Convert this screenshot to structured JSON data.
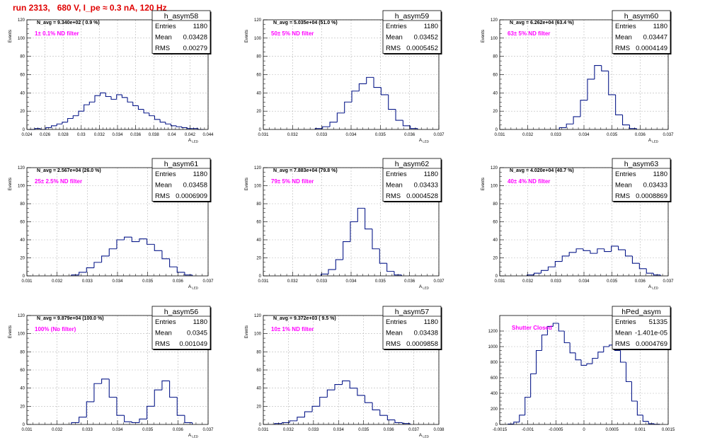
{
  "page": {
    "title": "run 2313,   680 V, I_pe ≈ 0.3 nA, 120 Hz"
  },
  "chart_data": [
    {
      "type": "bar",
      "hist_name": "h_asym58",
      "stats": [
        [
          "Entries",
          "1180"
        ],
        [
          "Mean",
          "0.03428"
        ],
        [
          "RMS",
          "0.00279"
        ]
      ],
      "navg_label": "N_avg = 9.340e+02 ( 0.9 %)",
      "filter_label": "1± 0.1% ND filter",
      "ylabel": "Events",
      "xlabel": "A",
      "xlabel_sub": "LED",
      "xlim": [
        0.024,
        0.044
      ],
      "ylim": [
        0,
        120
      ],
      "xticks": [
        0.024,
        0.026,
        0.028,
        0.03,
        0.032,
        0.034,
        0.036,
        0.038,
        0.04,
        0.042,
        0.044
      ],
      "xtick_labels": [
        "0.024",
        "0.026",
        "0.028",
        "0.03",
        "0.032",
        "0.034",
        "0.036",
        "0.038",
        "0.04",
        "0.042",
        "0.044"
      ],
      "yticks": [
        0,
        20,
        40,
        60,
        80,
        100,
        120
      ],
      "ytick_labels": [
        "0",
        "20",
        "40",
        "60",
        "80",
        "100",
        "120"
      ],
      "x": [
        0.0246,
        0.0252,
        0.0258,
        0.0264,
        0.027,
        0.0276,
        0.0282,
        0.0288,
        0.0294,
        0.03,
        0.0306,
        0.0312,
        0.0318,
        0.0324,
        0.033,
        0.0336,
        0.0342,
        0.0348,
        0.0354,
        0.036,
        0.0366,
        0.0372,
        0.0378,
        0.0384,
        0.039,
        0.0396,
        0.0402,
        0.0408,
        0.0414,
        0.042,
        0.0426,
        0.0432
      ],
      "values": [
        0,
        1,
        0,
        2,
        4,
        6,
        8,
        12,
        15,
        20,
        27,
        30,
        37,
        40,
        36,
        33,
        38,
        35,
        30,
        26,
        22,
        18,
        15,
        11,
        8,
        6,
        4,
        3,
        2,
        1,
        1,
        0
      ]
    },
    {
      "type": "bar",
      "hist_name": "h_asym59",
      "stats": [
        [
          "Entries",
          "1180"
        ],
        [
          "Mean",
          "0.03452"
        ],
        [
          "RMS",
          "0.0005452"
        ]
      ],
      "navg_label": "N_avg = 5.035e+04 (51.0 %)",
      "filter_label": "50± 5% ND filter",
      "ylabel": "Events",
      "xlabel": "A",
      "xlabel_sub": "LED",
      "xlim": [
        0.031,
        0.037
      ],
      "ylim": [
        0,
        120
      ],
      "xticks": [
        0.031,
        0.032,
        0.033,
        0.034,
        0.035,
        0.036,
        0.037
      ],
      "xtick_labels": [
        "0.031",
        "0.032",
        "0.033",
        "0.034",
        "0.035",
        "0.036",
        "0.037"
      ],
      "yticks": [
        0,
        20,
        40,
        60,
        80,
        100,
        120
      ],
      "ytick_labels": [
        "0",
        "20",
        "40",
        "60",
        "80",
        "100",
        "120"
      ],
      "x": [
        0.0329,
        0.03315,
        0.0334,
        0.03365,
        0.0339,
        0.03415,
        0.0344,
        0.03465,
        0.0349,
        0.03515,
        0.0354,
        0.03565,
        0.0359,
        0.03615
      ],
      "values": [
        1,
        3,
        8,
        18,
        30,
        42,
        50,
        57,
        46,
        38,
        22,
        10,
        4,
        1
      ]
    },
    {
      "type": "bar",
      "hist_name": "h_asym60",
      "stats": [
        [
          "Entries",
          "1180"
        ],
        [
          "Mean",
          "0.03447"
        ],
        [
          "RMS",
          "0.0004149"
        ]
      ],
      "navg_label": "N_avg = 6.262e+04 (63.4 %)",
      "filter_label": "63± 5% ND filter",
      "ylabel": "Events",
      "xlabel": "A",
      "xlabel_sub": "LED",
      "xlim": [
        0.031,
        0.037
      ],
      "ylim": [
        0,
        120
      ],
      "xticks": [
        0.031,
        0.032,
        0.033,
        0.034,
        0.035,
        0.036,
        0.037
      ],
      "xtick_labels": [
        "0.031",
        "0.032",
        "0.033",
        "0.034",
        "0.035",
        "0.036",
        "0.037"
      ],
      "yticks": [
        0,
        20,
        40,
        60,
        80,
        100,
        120
      ],
      "ytick_labels": [
        "0",
        "20",
        "40",
        "60",
        "80",
        "100",
        "120"
      ],
      "x": [
        0.03325,
        0.0335,
        0.03375,
        0.034,
        0.03425,
        0.0345,
        0.03475,
        0.035,
        0.03525,
        0.0355,
        0.03575
      ],
      "values": [
        2,
        6,
        14,
        32,
        55,
        70,
        64,
        38,
        16,
        5,
        1
      ]
    },
    {
      "type": "bar",
      "hist_name": "h_asym61",
      "stats": [
        [
          "Entries",
          "1180"
        ],
        [
          "Mean",
          "0.03458"
        ],
        [
          "RMS",
          "0.0006909"
        ]
      ],
      "navg_label": "N_avg = 2.567e+04 (26.0 %)",
      "filter_label": "25± 2.5% ND filter",
      "ylabel": "Events",
      "xlabel": "A",
      "xlabel_sub": "LED",
      "xlim": [
        0.031,
        0.037
      ],
      "ylim": [
        0,
        120
      ],
      "xticks": [
        0.031,
        0.032,
        0.033,
        0.034,
        0.035,
        0.036,
        0.037
      ],
      "xtick_labels": [
        "0.031",
        "0.032",
        "0.033",
        "0.034",
        "0.035",
        "0.036",
        "0.037"
      ],
      "yticks": [
        0,
        20,
        40,
        60,
        80,
        100,
        120
      ],
      "ytick_labels": [
        "0",
        "20",
        "40",
        "60",
        "80",
        "100",
        "120"
      ],
      "x": [
        0.0326,
        0.03285,
        0.0331,
        0.03335,
        0.0336,
        0.03385,
        0.0341,
        0.03435,
        0.0346,
        0.03485,
        0.0351,
        0.03535,
        0.0356,
        0.03585,
        0.0361,
        0.03635
      ],
      "values": [
        1,
        4,
        9,
        15,
        22,
        30,
        40,
        43,
        38,
        41,
        35,
        28,
        19,
        10,
        4,
        1
      ]
    },
    {
      "type": "bar",
      "hist_name": "h_asym62",
      "stats": [
        [
          "Entries",
          "1180"
        ],
        [
          "Mean",
          "0.03433"
        ],
        [
          "RMS",
          "0.0004528"
        ]
      ],
      "navg_label": "N_avg = 7.883e+04 (79.8 %)",
      "filter_label": "79± 5% ND filter",
      "ylabel": "Events",
      "xlabel": "A",
      "xlabel_sub": "LED",
      "xlim": [
        0.031,
        0.037
      ],
      "ylim": [
        0,
        120
      ],
      "xticks": [
        0.031,
        0.032,
        0.033,
        0.034,
        0.035,
        0.036,
        0.037
      ],
      "xtick_labels": [
        "0.031",
        "0.032",
        "0.033",
        "0.034",
        "0.035",
        "0.036",
        "0.037"
      ],
      "yticks": [
        0,
        20,
        40,
        60,
        80,
        100,
        120
      ],
      "ytick_labels": [
        "0",
        "20",
        "40",
        "60",
        "80",
        "100",
        "120"
      ],
      "x": [
        0.0331,
        0.03335,
        0.0336,
        0.03385,
        0.0341,
        0.03435,
        0.0346,
        0.03485,
        0.0351,
        0.03535,
        0.0356
      ],
      "values": [
        2,
        7,
        18,
        38,
        60,
        75,
        52,
        30,
        14,
        5,
        1
      ]
    },
    {
      "type": "bar",
      "hist_name": "h_asym63",
      "stats": [
        [
          "Entries",
          "1180"
        ],
        [
          "Mean",
          "0.03433"
        ],
        [
          "RMS",
          "0.0008869"
        ]
      ],
      "navg_label": "N_avg = 4.020e+04 (40.7 %)",
      "filter_label": "40± 4% ND filter",
      "ylabel": "Events",
      "xlabel": "A",
      "xlabel_sub": "LED",
      "xlim": [
        0.031,
        0.037
      ],
      "ylim": [
        0,
        120
      ],
      "xticks": [
        0.031,
        0.032,
        0.033,
        0.034,
        0.035,
        0.036,
        0.037
      ],
      "xtick_labels": [
        "0.031",
        "0.032",
        "0.033",
        "0.034",
        "0.035",
        "0.036",
        "0.037"
      ],
      "yticks": [
        0,
        20,
        40,
        60,
        80,
        100,
        120
      ],
      "ytick_labels": [
        "0",
        "20",
        "40",
        "60",
        "80",
        "100",
        "120"
      ],
      "x": [
        0.0321,
        0.03235,
        0.0326,
        0.03285,
        0.0331,
        0.03335,
        0.0336,
        0.03385,
        0.0341,
        0.03435,
        0.0346,
        0.03485,
        0.0351,
        0.03535,
        0.0356,
        0.03585,
        0.0361,
        0.03635,
        0.0366
      ],
      "values": [
        1,
        3,
        6,
        10,
        16,
        22,
        26,
        30,
        28,
        25,
        30,
        27,
        33,
        29,
        22,
        14,
        8,
        3,
        1
      ]
    },
    {
      "type": "bar",
      "hist_name": "h_asym56",
      "stats": [
        [
          "Entries",
          "1180"
        ],
        [
          "Mean",
          "0.0345"
        ],
        [
          "RMS",
          "0.001049"
        ]
      ],
      "navg_label": "N_avg = 9.879e+04 (100.0 %)",
      "filter_label": "100% (No filter)",
      "ylabel": "Events",
      "xlabel": "A",
      "xlabel_sub": "LED",
      "xlim": [
        0.031,
        0.037
      ],
      "ylim": [
        0,
        120
      ],
      "xticks": [
        0.031,
        0.032,
        0.033,
        0.034,
        0.035,
        0.036,
        0.037
      ],
      "xtick_labels": [
        "0.031",
        "0.032",
        "0.033",
        "0.034",
        "0.035",
        "0.036",
        "0.037"
      ],
      "yticks": [
        0,
        20,
        40,
        60,
        80,
        100,
        120
      ],
      "ytick_labels": [
        "0",
        "20",
        "40",
        "60",
        "80",
        "100",
        "120"
      ],
      "x": [
        0.0326,
        0.03285,
        0.0331,
        0.03335,
        0.0336,
        0.03385,
        0.0341,
        0.03435,
        0.0346,
        0.03485,
        0.0351,
        0.03535,
        0.0356,
        0.03585,
        0.0361,
        0.03635
      ],
      "values": [
        2,
        8,
        25,
        45,
        50,
        30,
        10,
        3,
        2,
        6,
        20,
        38,
        48,
        30,
        10,
        2
      ]
    },
    {
      "type": "bar",
      "hist_name": "h_asym57",
      "stats": [
        [
          "Entries",
          "1180"
        ],
        [
          "Mean",
          "0.03438"
        ],
        [
          "RMS",
          "0.0009858"
        ]
      ],
      "navg_label": "N_avg = 9.372e+03 ( 9.5 %)",
      "filter_label": "10± 1% ND filter",
      "ylabel": "Events",
      "xlabel": "A",
      "xlabel_sub": "LED",
      "xlim": [
        0.031,
        0.038
      ],
      "ylim": [
        0,
        120
      ],
      "xticks": [
        0.031,
        0.032,
        0.033,
        0.034,
        0.035,
        0.036,
        0.037,
        0.038
      ],
      "xtick_labels": [
        "0.031",
        "0.032",
        "0.033",
        "0.034",
        "0.035",
        "0.036",
        "0.037",
        "0.038"
      ],
      "yticks": [
        0,
        20,
        40,
        60,
        80,
        100,
        120
      ],
      "ytick_labels": [
        "0",
        "20",
        "40",
        "60",
        "80",
        "100",
        "120"
      ],
      "x": [
        0.0316,
        0.0319,
        0.0322,
        0.0325,
        0.0328,
        0.0331,
        0.0334,
        0.0337,
        0.034,
        0.0343,
        0.0346,
        0.0349,
        0.0352,
        0.0355,
        0.0358,
        0.0361,
        0.0364,
        0.0367
      ],
      "values": [
        1,
        2,
        4,
        8,
        14,
        20,
        30,
        38,
        44,
        48,
        40,
        32,
        24,
        16,
        10,
        5,
        2,
        1
      ]
    },
    {
      "type": "bar",
      "hist_name": "hPed_asym",
      "stats": [
        [
          "Entries",
          "51335"
        ],
        [
          "Mean",
          "-1.401e-05"
        ],
        [
          "RMS",
          "0.0004769"
        ]
      ],
      "navg_label": "",
      "filter_label": "Shutter Closed",
      "ylabel": "",
      "xlabel": "",
      "xlabel_sub": "",
      "xlim": [
        -0.0015,
        0.0015
      ],
      "ylim": [
        0,
        1400
      ],
      "xticks": [
        -0.0015,
        -0.001,
        -0.0005,
        0,
        0.0005,
        0.001,
        0.0015
      ],
      "xtick_labels": [
        "-0.0015",
        "-0.001",
        "-0.0005",
        "0",
        "0.0005",
        "0.001",
        "0.0015"
      ],
      "yticks": [
        0,
        200,
        400,
        600,
        800,
        1000,
        1200
      ],
      "ytick_labels": [
        "0",
        "200",
        "400",
        "600",
        "800",
        "1000",
        "1200"
      ],
      "x": [
        -0.0013,
        -0.0012,
        -0.0011,
        -0.001,
        -0.0009,
        -0.0008,
        -0.0007,
        -0.0006,
        -0.0005,
        -0.0004,
        -0.0003,
        -0.0002,
        -0.0001,
        0,
        0.0001,
        0.0002,
        0.0003,
        0.0004,
        0.0005,
        0.0006,
        0.0007,
        0.0008,
        0.0009,
        0.001,
        0.0011,
        0.0012,
        0.0013
      ],
      "values": [
        5,
        30,
        120,
        350,
        650,
        950,
        1150,
        1260,
        1300,
        1200,
        1050,
        920,
        830,
        760,
        780,
        850,
        930,
        1000,
        1020,
        950,
        800,
        550,
        300,
        120,
        40,
        10,
        2
      ]
    }
  ]
}
